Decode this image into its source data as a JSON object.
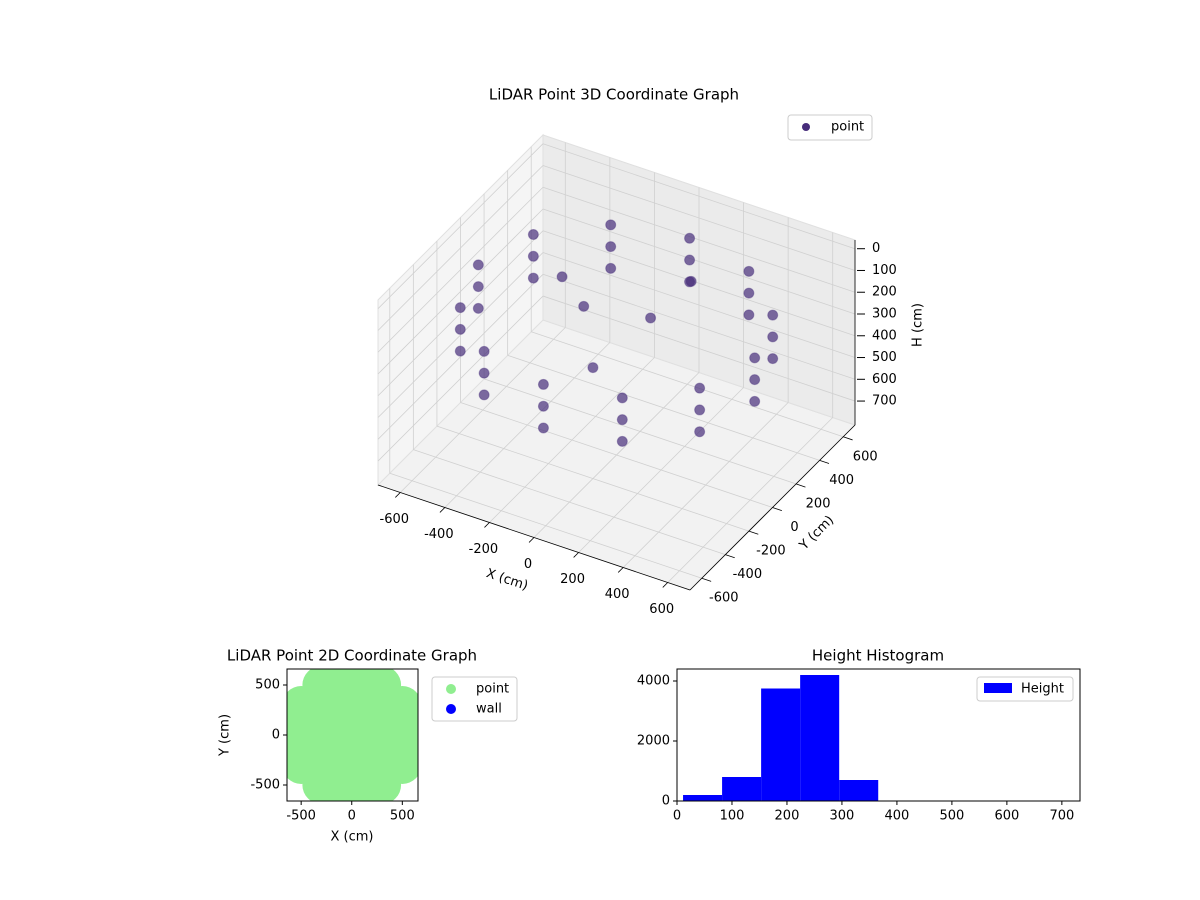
{
  "chart_data": [
    {
      "type": "scatter3d",
      "title": "LiDAR Point 3D Coordinate Graph",
      "xlabel": "X (cm)",
      "ylabel": "Y (cm)",
      "zlabel": "H (cm)",
      "xlim": [
        -700,
        700
      ],
      "ylim": [
        -700,
        700
      ],
      "zlim": [
        810,
        -40
      ],
      "xticks": [
        -600,
        -400,
        -200,
        0,
        200,
        400,
        600
      ],
      "yticks": [
        -600,
        -400,
        -200,
        0,
        200,
        400,
        600
      ],
      "zticks": [
        0,
        100,
        200,
        300,
        400,
        500,
        600,
        700
      ],
      "grid": true,
      "legend": "upper right",
      "series": [
        {
          "name": "point",
          "color": "#472d7b",
          "x": [
            620,
            537,
            310,
            0,
            -310,
            -537,
            -620,
            -537,
            -310,
            0,
            310,
            537,
            620,
            537,
            310,
            0,
            -310,
            -537,
            -620,
            -537,
            -310,
            0,
            310,
            537,
            620,
            537,
            310,
            0,
            -310,
            -537,
            -620,
            -537,
            -310,
            0,
            310,
            537,
            100,
            -200,
            0,
            -350,
            150
          ],
          "y": [
            0,
            310,
            537,
            620,
            537,
            310,
            0,
            -310,
            -537,
            -620,
            -537,
            -310,
            0,
            310,
            537,
            620,
            537,
            310,
            0,
            -310,
            -537,
            -620,
            -537,
            -310,
            0,
            310,
            537,
            620,
            537,
            310,
            0,
            -310,
            -537,
            -620,
            -537,
            -310,
            100,
            100,
            -200,
            200,
            350
          ],
          "z": [
            150,
            150,
            150,
            150,
            150,
            150,
            150,
            150,
            150,
            150,
            150,
            150,
            250,
            250,
            250,
            250,
            250,
            250,
            250,
            250,
            250,
            250,
            250,
            250,
            350,
            350,
            350,
            350,
            350,
            350,
            350,
            350,
            350,
            350,
            350,
            350,
            200,
            250,
            300,
            220,
            150
          ]
        }
      ]
    },
    {
      "type": "scatter",
      "title": "LiDAR Point 2D Coordinate Graph",
      "xlabel": "X (cm)",
      "ylabel": "Y (cm)",
      "xlim": [
        -640,
        655
      ],
      "ylim": [
        -660,
        660
      ],
      "xticks": [
        -500,
        0,
        500
      ],
      "yticks": [
        -500,
        0,
        500
      ],
      "legend": "outside right",
      "series": [
        {
          "name": "point",
          "color": "#90ee90",
          "x": [
            -500,
            -500,
            -500,
            -500,
            -300,
            -300,
            -300,
            -300,
            -300,
            -300,
            -100,
            -100,
            -100,
            -100,
            -100,
            -100,
            100,
            100,
            100,
            100,
            100,
            100,
            300,
            300,
            300,
            300,
            300,
            300,
            500,
            500,
            500,
            500
          ],
          "y": [
            -300,
            -100,
            100,
            300,
            -500,
            -300,
            -100,
            100,
            300,
            500,
            -500,
            -300,
            -100,
            100,
            300,
            500,
            -500,
            -300,
            -100,
            100,
            300,
            500,
            -500,
            -300,
            -100,
            100,
            300,
            500,
            -300,
            -100,
            100,
            300
          ]
        },
        {
          "name": "wall",
          "color": "#0000ff",
          "x": [],
          "y": []
        }
      ]
    },
    {
      "type": "histogram",
      "title": "Height Histogram",
      "legend": "upper right",
      "xlim": [
        0,
        733
      ],
      "ylim": [
        0,
        4400
      ],
      "xticks": [
        0,
        100,
        200,
        300,
        400,
        500,
        600,
        700
      ],
      "yticks": [
        0,
        2000,
        4000
      ],
      "bins": [
        11,
        82,
        153,
        224,
        295,
        366,
        437,
        508,
        579,
        650,
        721
      ],
      "series": [
        {
          "name": "Height",
          "color": "#0000ff",
          "values": [
            200,
            800,
            3750,
            4200,
            700,
            10,
            5,
            5,
            5,
            5
          ]
        }
      ]
    }
  ]
}
